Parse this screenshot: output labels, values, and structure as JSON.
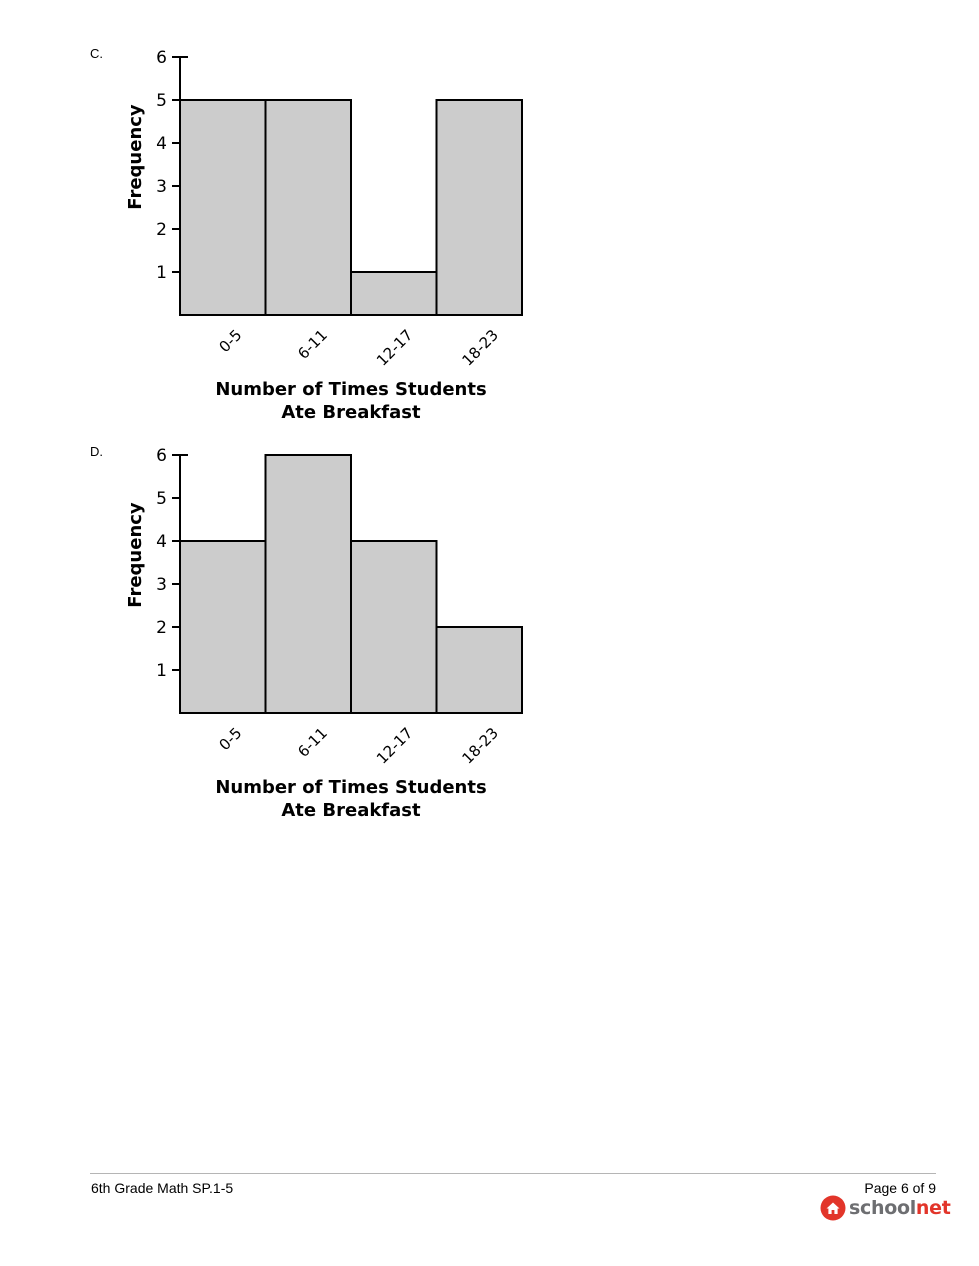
{
  "charts": [
    {
      "letter": "C.",
      "chart_data": {
        "type": "bar",
        "categories": [
          "0-5",
          "6-11",
          "12-17",
          "18-23"
        ],
        "values": [
          5,
          5,
          1,
          5
        ],
        "title": "",
        "xlabel": [
          "Number of Times Students",
          "Ate Breakfast"
        ],
        "ylabel": "Frequency",
        "ylim": [
          0,
          6
        ],
        "yticks": [
          "1",
          "2",
          "3",
          "4",
          "5",
          "6"
        ],
        "grid": false,
        "bar_color": "#cccccc"
      }
    },
    {
      "letter": "D.",
      "chart_data": {
        "type": "bar",
        "categories": [
          "0-5",
          "6-11",
          "12-17",
          "18-23"
        ],
        "values": [
          4,
          6,
          4,
          2
        ],
        "title": "",
        "xlabel": [
          "Number of Times Students",
          "Ate Breakfast"
        ],
        "ylabel": "Frequency",
        "ylim": [
          0,
          6
        ],
        "yticks": [
          "1",
          "2",
          "3",
          "4",
          "5",
          "6"
        ],
        "grid": false,
        "bar_color": "#cccccc"
      }
    }
  ],
  "footer": {
    "course": "6th Grade Math SP.1-5",
    "page": "Page 6 of 9",
    "logo_part1": "school",
    "logo_part2": "net",
    "logo_icon": "house-icon",
    "brand_red": "#e2352a",
    "brand_gray": "#6d6e71"
  }
}
